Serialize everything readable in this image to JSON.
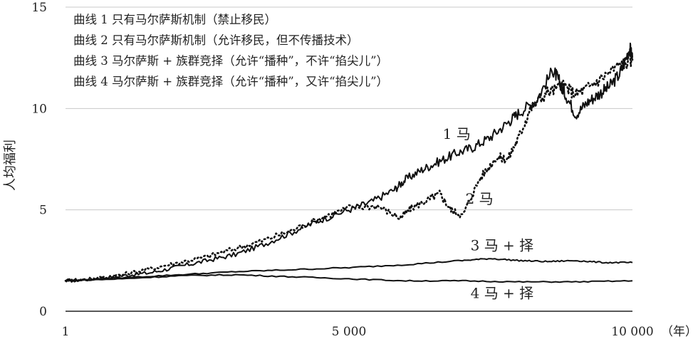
{
  "chart_data": {
    "type": "line",
    "ylabel": "人均福利",
    "xlabel": "",
    "x_unit": "（年）",
    "ylim": [
      0,
      15
    ],
    "xlim": [
      1,
      10000
    ],
    "x_ticks": [
      {
        "value": 1,
        "label": "1"
      },
      {
        "value": 5000,
        "label": "5 000"
      },
      {
        "value": 10000,
        "label": "10 000"
      }
    ],
    "y_ticks": [
      {
        "value": 0,
        "label": "0"
      },
      {
        "value": 5,
        "label": "5"
      },
      {
        "value": 10,
        "label": "10"
      },
      {
        "value": 15,
        "label": "15"
      }
    ],
    "grid": true,
    "legend_placement": "top-left",
    "legend": [
      "曲线 1 只有马尔萨斯机制（禁止移民）",
      "曲线 2 只有马尔萨斯机制（允许移民，但不传播技术）",
      "曲线 3 马尔萨斯 + 族群竞择（允许“播种”，不许“掐尖儿”）",
      "曲线 4 马尔萨斯 + 族群竞择（允许“播种”，又许“掐尖儿”）"
    ],
    "series": [
      {
        "name": "1 马",
        "style": "solid",
        "label_at": [
          6900,
          8.5
        ],
        "x": [
          1,
          500,
          1000,
          1500,
          2000,
          2500,
          3000,
          3500,
          4000,
          4500,
          5000,
          5400,
          5800,
          6000,
          6300,
          6600,
          6900,
          7200,
          7500,
          7800,
          8000,
          8300,
          8600,
          8700,
          8800,
          9000,
          9200,
          9400,
          9600,
          9800,
          9950,
          10000
        ],
        "y": [
          1.5,
          1.6,
          1.75,
          1.9,
          2.2,
          2.5,
          2.8,
          3.3,
          3.9,
          4.5,
          5.0,
          5.4,
          6.0,
          6.5,
          7.0,
          7.4,
          7.8,
          8.1,
          8.6,
          9.3,
          9.8,
          10.4,
          11.9,
          11.4,
          10.8,
          9.7,
          10.3,
          10.7,
          11.1,
          11.8,
          13.0,
          12.5
        ]
      },
      {
        "name": "2 马",
        "style": "dotted",
        "label_at": [
          7300,
          5.3
        ],
        "x": [
          1,
          500,
          1000,
          1500,
          2000,
          2500,
          3000,
          3500,
          4000,
          4500,
          5000,
          5500,
          5900,
          6100,
          6400,
          6600,
          6800,
          7000,
          7300,
          7600,
          7800,
          8000,
          8200,
          8500,
          8800,
          9000,
          9200,
          9500,
          9800,
          10000
        ],
        "y": [
          1.5,
          1.6,
          1.8,
          2.1,
          2.4,
          2.7,
          3.1,
          3.5,
          4.0,
          4.6,
          5.1,
          5.2,
          4.6,
          5.1,
          5.5,
          5.8,
          5.0,
          4.7,
          6.5,
          7.6,
          7.5,
          8.6,
          10.0,
          10.8,
          11.1,
          10.7,
          11.0,
          11.6,
          12.2,
          12.4
        ]
      },
      {
        "name": "3 马 + 择",
        "style": "solid",
        "label_at": [
          7700,
          3.0
        ],
        "x": [
          1,
          1000,
          2000,
          3000,
          4000,
          5000,
          6000,
          7000,
          7500,
          8000,
          8500,
          9000,
          9500,
          10000
        ],
        "y": [
          1.5,
          1.65,
          1.8,
          1.95,
          2.05,
          2.15,
          2.3,
          2.5,
          2.6,
          2.5,
          2.45,
          2.5,
          2.4,
          2.4
        ]
      },
      {
        "name": "4 马 + 择",
        "style": "solid",
        "label_at": [
          7700,
          0.65
        ],
        "x": [
          1,
          1000,
          2000,
          3000,
          4000,
          5000,
          6000,
          7000,
          8000,
          9000,
          10000
        ],
        "y": [
          1.5,
          1.6,
          1.75,
          1.8,
          1.7,
          1.6,
          1.5,
          1.5,
          1.45,
          1.45,
          1.5
        ]
      }
    ]
  }
}
